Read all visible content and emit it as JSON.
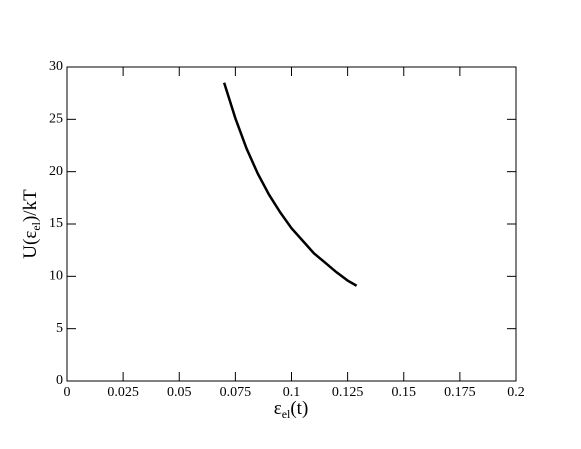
{
  "chart_data": {
    "type": "line",
    "xlabel": [
      "ε",
      "el",
      "(t)"
    ],
    "ylabel": [
      "U(ε",
      "el",
      ")/kT"
    ],
    "x": [
      0.07,
      0.075,
      0.08,
      0.085,
      0.09,
      0.095,
      0.1,
      0.105,
      0.11,
      0.115,
      0.12,
      0.125,
      0.129
    ],
    "series": [
      {
        "color": "#000000",
        "values": [
          28.5,
          25.1,
          22.2,
          19.8,
          17.8,
          16.1,
          14.6,
          13.4,
          12.2,
          11.3,
          10.4,
          9.6,
          9.1
        ]
      }
    ],
    "xlim": [
      0,
      0.2
    ],
    "xticks": [
      0,
      0.025,
      0.05,
      0.075,
      0.1,
      0.125,
      0.15,
      0.175,
      0.2
    ],
    "ylim": [
      0,
      30
    ],
    "yticks": [
      0,
      5,
      10,
      15,
      20,
      25,
      30
    ],
    "grid": false
  }
}
